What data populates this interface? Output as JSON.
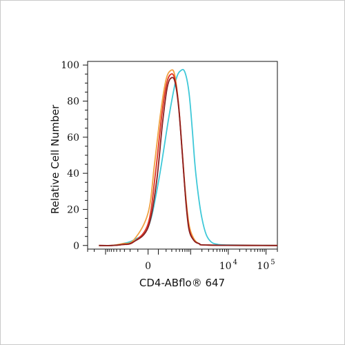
{
  "chart_data": {
    "type": "line",
    "title": "",
    "xlabel": "CD4-ABflo® 647",
    "ylabel": "Relative Cell Number",
    "x_scale": "biexponential",
    "x_tick_labels": [
      {
        "value": 0,
        "base": "0",
        "exp": ""
      },
      {
        "value": 10000,
        "base": "10",
        "exp": "4"
      },
      {
        "value": 100000,
        "base": "10",
        "exp": "5"
      }
    ],
    "ylim": [
      0,
      100
    ],
    "y_ticks": [
      0,
      20,
      40,
      60,
      80,
      100
    ],
    "grid": false,
    "series": [
      {
        "color": "#3ec8d8",
        "x": [
          -1500,
          -700,
          -350,
          -150,
          0,
          100,
          250,
          400,
          550,
          700,
          900,
          1100,
          1300,
          1600,
          2000,
          2600,
          3500,
          5000,
          10000,
          200000
        ],
        "y": [
          0,
          0,
          1,
          3,
          10,
          35,
          72,
          92,
          97,
          96,
          85,
          65,
          45,
          28,
          15,
          6,
          2,
          0.7,
          0.3,
          0
        ]
      },
      {
        "color": "#f0a040",
        "x": [
          -1500,
          -700,
          -350,
          -150,
          0,
          60,
          130,
          200,
          280,
          360,
          460,
          580,
          720,
          900,
          1200,
          1700,
          3000,
          200000
        ],
        "y": [
          0,
          0,
          1,
          3,
          18,
          45,
          75,
          92,
          97,
          95,
          80,
          55,
          30,
          12,
          4,
          1,
          0.2,
          0
        ]
      },
      {
        "color": "#e03020",
        "x": [
          -1500,
          -700,
          -350,
          -150,
          0,
          70,
          140,
          210,
          290,
          370,
          470,
          590,
          730,
          900,
          1200,
          1700,
          3000,
          200000
        ],
        "y": [
          0,
          0,
          0.5,
          2,
          12,
          40,
          72,
          90,
          95,
          92,
          78,
          52,
          27,
          10,
          3,
          1,
          0.2,
          0
        ]
      },
      {
        "color": "#8a2020",
        "x": [
          -1500,
          -700,
          -350,
          -150,
          0,
          80,
          150,
          220,
          300,
          380,
          480,
          600,
          740,
          900,
          1200,
          1700,
          3000,
          200000
        ],
        "y": [
          0,
          0,
          0.5,
          2,
          10,
          35,
          68,
          88,
          93,
          90,
          75,
          50,
          25,
          9,
          3,
          1,
          0.2,
          0
        ]
      }
    ]
  }
}
